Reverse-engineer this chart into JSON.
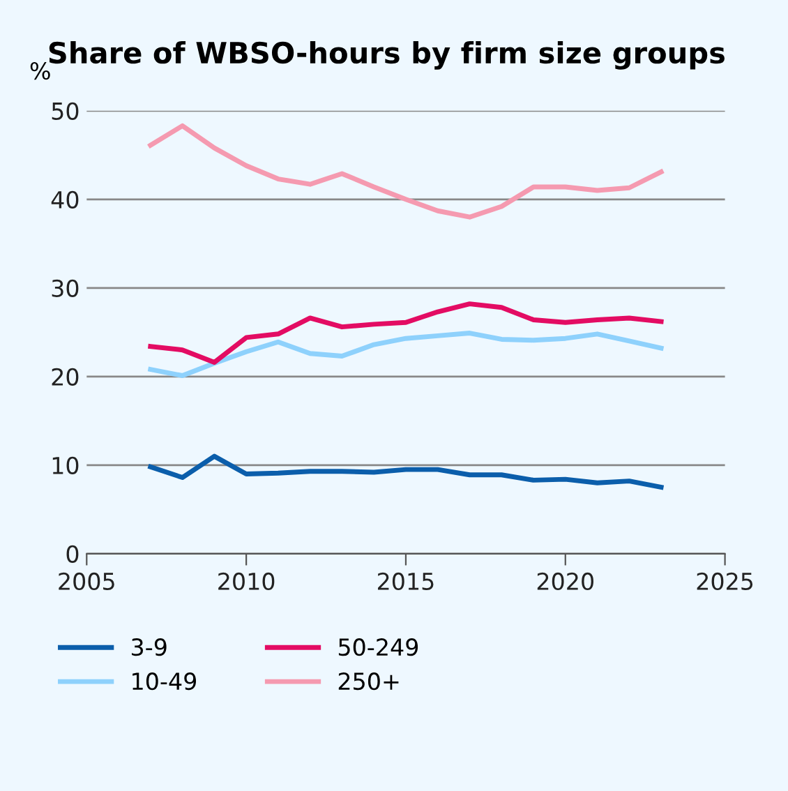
{
  "chart_data": {
    "type": "line",
    "title": "Share of WBSO-hours by firm size groups",
    "ylabel": "%",
    "x": [
      2007,
      2008,
      2009,
      2010,
      2011,
      2012,
      2013,
      2014,
      2015,
      2016,
      2017,
      2018,
      2019,
      2020,
      2021,
      2022,
      2023
    ],
    "series": [
      {
        "name": "3-9",
        "color": "#0b5eab",
        "values": [
          9.8,
          8.6,
          11.0,
          9.0,
          9.1,
          9.3,
          9.3,
          9.2,
          9.5,
          9.5,
          8.9,
          8.9,
          8.3,
          8.4,
          8.0,
          8.2,
          7.5
        ]
      },
      {
        "name": "10-49",
        "color": "#8ed1fc",
        "values": [
          20.8,
          20.1,
          21.5,
          22.8,
          23.9,
          22.6,
          22.3,
          23.6,
          24.3,
          24.6,
          24.9,
          24.2,
          24.1,
          24.3,
          24.8,
          24.0,
          23.2
        ]
      },
      {
        "name": "50-249",
        "color": "#e30c63",
        "values": [
          23.4,
          23.0,
          21.6,
          24.4,
          24.8,
          26.6,
          25.6,
          25.9,
          26.1,
          27.3,
          28.2,
          27.8,
          26.4,
          26.1,
          26.4,
          26.6,
          26.2
        ]
      },
      {
        "name": "250+",
        "color": "#f59ab0",
        "values": [
          46.1,
          48.3,
          45.8,
          43.8,
          42.3,
          41.7,
          42.9,
          41.4,
          40.0,
          38.7,
          38.0,
          39.2,
          41.4,
          41.4,
          41.0,
          41.3,
          43.1
        ]
      }
    ],
    "xlim": [
      2005,
      2025
    ],
    "xticks": [
      2005,
      2010,
      2015,
      2020,
      2025
    ],
    "ylim": [
      0,
      50
    ],
    "yticks": [
      0,
      10,
      20,
      30,
      40,
      50
    ],
    "grid": "y",
    "legend": "bottom left",
    "marker": "none",
    "line_style": "solid"
  }
}
